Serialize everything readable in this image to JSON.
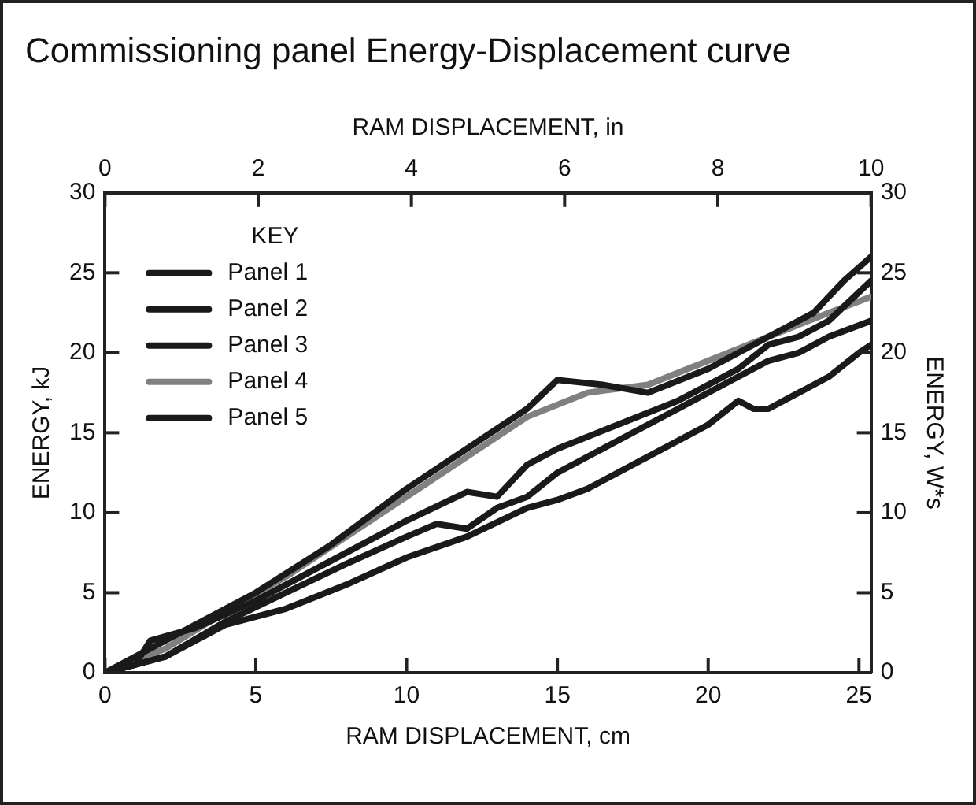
{
  "chart_data": {
    "type": "line",
    "title": "Commissioning panel Energy-Displacement curve",
    "xlabel": "RAM DISPLACEMENT, cm",
    "x2label": "RAM DISPLACEMENT, in",
    "ylabel": "ENERGY, kJ",
    "y2label": "ENERGY, W*s",
    "legend_title": "KEY",
    "legend": "top left",
    "grid": false,
    "marker": "none",
    "line_style": "solid",
    "xlim": [
      0,
      25.4
    ],
    "xticks": [
      0,
      5,
      10,
      15,
      20,
      25
    ],
    "x2lim": [
      0,
      10
    ],
    "x2ticks": [
      0,
      2,
      4,
      6,
      8,
      10
    ],
    "ylim": [
      0,
      30
    ],
    "yticks": [
      0,
      5,
      10,
      15,
      20,
      25,
      30
    ],
    "y2lim": [
      0,
      30
    ],
    "y2ticks": [
      0,
      5,
      10,
      15,
      20,
      25,
      30
    ],
    "series": [
      {
        "name": "Panel 1",
        "color": "#1a1a1a",
        "x": [
          0,
          1.5,
          3,
          5,
          7.5,
          10,
          12,
          14,
          15,
          16.5,
          18,
          20,
          22,
          23.5,
          24.5,
          25.4
        ],
        "values": [
          0,
          1.5,
          3,
          5,
          8,
          11.5,
          14,
          16.5,
          18.3,
          18,
          17.5,
          19,
          21,
          22.5,
          24.5,
          26
        ]
      },
      {
        "name": "Panel 2",
        "color": "#1a1a1a",
        "x": [
          0,
          1,
          1.5,
          3,
          5,
          7.5,
          10,
          12,
          13,
          14,
          15,
          17,
          19,
          21,
          22,
          23,
          24,
          25.4
        ],
        "values": [
          0,
          0.5,
          2,
          2.8,
          4.5,
          7,
          9.5,
          11.3,
          11,
          13,
          14,
          15.5,
          17,
          19,
          20.5,
          21,
          22,
          24.5
        ]
      },
      {
        "name": "Panel 3",
        "color": "#1a1a1a",
        "x": [
          0,
          2,
          4,
          6,
          8,
          10,
          11,
          12,
          13,
          14,
          15,
          17,
          19,
          21,
          22,
          23,
          24,
          25.4
        ],
        "values": [
          0,
          1,
          3.2,
          5,
          6.8,
          8.5,
          9.3,
          9,
          10.3,
          11,
          12.5,
          14.5,
          16.5,
          18.5,
          19.5,
          20,
          21,
          22
        ]
      },
      {
        "name": "Panel 4",
        "color": "#808080",
        "x": [
          0,
          2,
          4,
          6,
          8,
          10,
          12,
          14,
          16,
          18,
          20,
          22,
          24,
          25.4
        ],
        "values": [
          0,
          1.5,
          3.8,
          6,
          8.5,
          11,
          13.5,
          16,
          17.5,
          18,
          19.5,
          21,
          22.5,
          23.5
        ]
      },
      {
        "name": "Panel 5",
        "color": "#1a1a1a",
        "x": [
          0,
          2,
          4,
          6,
          8,
          10,
          12,
          14,
          15,
          16,
          18,
          20,
          21,
          21.5,
          22,
          23,
          24,
          25,
          25.4
        ],
        "values": [
          0,
          1,
          3,
          4,
          5.5,
          7.2,
          8.5,
          10.3,
          10.8,
          11.5,
          13.5,
          15.5,
          17,
          16.5,
          16.5,
          17.5,
          18.5,
          20,
          20.5
        ]
      }
    ]
  }
}
